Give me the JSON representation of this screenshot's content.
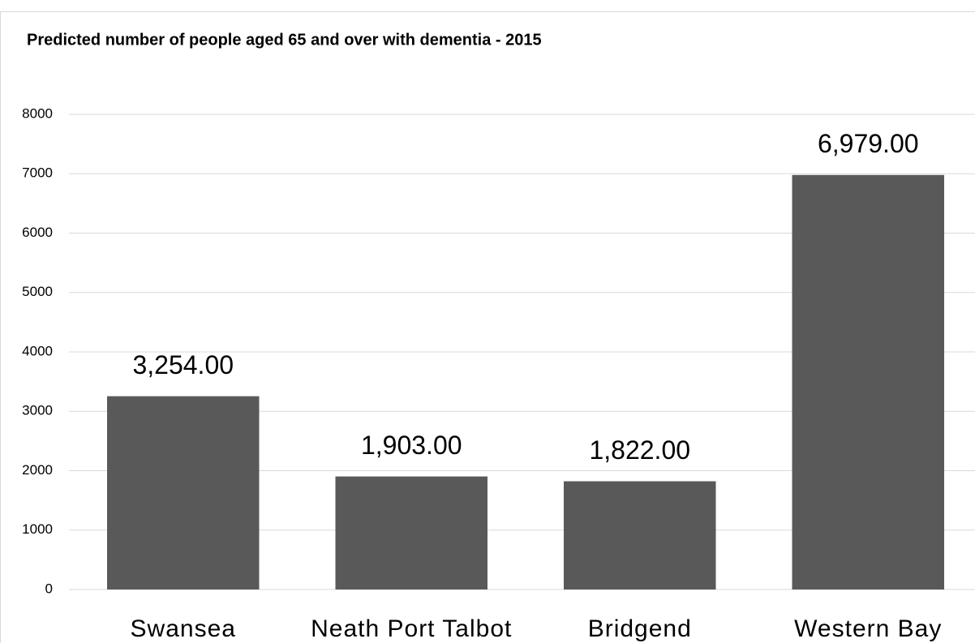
{
  "chart_data": {
    "type": "bar",
    "title": "Predicted number of people aged 65 and over with dementia - 2015",
    "categories": [
      "Swansea",
      "Neath Port Talbot",
      "Bridgend",
      "Western Bay"
    ],
    "values": [
      3254,
      1903,
      1822,
      6979
    ],
    "value_labels": [
      "3,254.00",
      "1,903.00",
      "1,822.00",
      "6,979.00"
    ],
    "color": "#595959",
    "ylim": [
      0,
      8000
    ],
    "yticks": [
      0,
      1000,
      2000,
      3000,
      4000,
      5000,
      6000,
      7000,
      8000
    ],
    "grid": true
  }
}
